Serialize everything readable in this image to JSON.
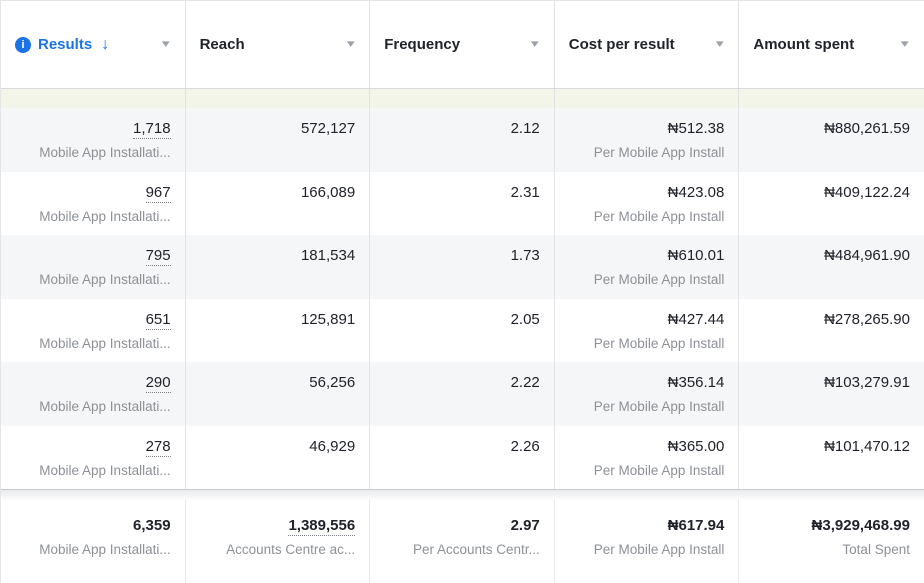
{
  "colors": {
    "accent_blue": "#1b74e4",
    "header_text": "#20232a",
    "value_text": "#20232a",
    "subtitle_text": "#8d9196",
    "row_alt_bg": "#f5f6f7",
    "green_strip_bg": "#f2f5e8",
    "divider": "#e2e4e8"
  },
  "icons": {
    "info": "i",
    "sort_desc": "↓",
    "chevron_down": "▾"
  },
  "table": {
    "columns": [
      {
        "label": "Results",
        "sort_indicator": "↓"
      },
      {
        "label": "Reach"
      },
      {
        "label": "Frequency"
      },
      {
        "label": "Cost per result"
      },
      {
        "label": "Amount spent"
      }
    ],
    "rows": [
      {
        "results": "1,718",
        "results_sub": "Mobile App Installati...",
        "reach": "572,127",
        "frequency": "2.12",
        "cost_per_result": "₦512.38",
        "cost_per_result_sub": "Per Mobile App Install",
        "amount_spent": "₦880,261.59"
      },
      {
        "results": "967",
        "results_sub": "Mobile App Installati...",
        "reach": "166,089",
        "frequency": "2.31",
        "cost_per_result": "₦423.08",
        "cost_per_result_sub": "Per Mobile App Install",
        "amount_spent": "₦409,122.24"
      },
      {
        "results": "795",
        "results_sub": "Mobile App Installati...",
        "reach": "181,534",
        "frequency": "1.73",
        "cost_per_result": "₦610.01",
        "cost_per_result_sub": "Per Mobile App Install",
        "amount_spent": "₦484,961.90"
      },
      {
        "results": "651",
        "results_sub": "Mobile App Installati...",
        "reach": "125,891",
        "frequency": "2.05",
        "cost_per_result": "₦427.44",
        "cost_per_result_sub": "Per Mobile App Install",
        "amount_spent": "₦278,265.90"
      },
      {
        "results": "290",
        "results_sub": "Mobile App Installati...",
        "reach": "56,256",
        "frequency": "2.22",
        "cost_per_result": "₦356.14",
        "cost_per_result_sub": "Per Mobile App Install",
        "amount_spent": "₦103,279.91"
      },
      {
        "results": "278",
        "results_sub": "Mobile App Installati...",
        "reach": "46,929",
        "frequency": "2.26",
        "cost_per_result": "₦365.00",
        "cost_per_result_sub": "Per Mobile App Install",
        "amount_spent": "₦101,470.12"
      }
    ],
    "footer": {
      "results": "6,359",
      "results_sub": "Mobile App Installati...",
      "reach": "1,389,556",
      "reach_sub": "Accounts Centre ac...",
      "frequency": "2.97",
      "frequency_sub": "Per Accounts Centr...",
      "cost_per_result": "₦617.94",
      "cost_per_result_sub": "Per Mobile App Install",
      "amount_spent": "₦3,929,468.99",
      "amount_spent_sub": "Total Spent"
    }
  }
}
